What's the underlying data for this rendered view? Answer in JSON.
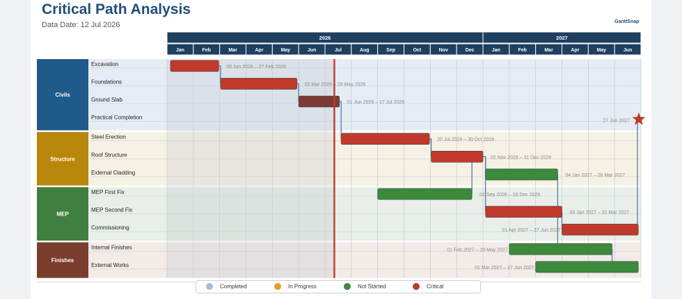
{
  "header": {
    "title": "Critical Path Analysis",
    "data_date_text": "Data Date: 12 Jul 2026",
    "brand": "GanttSnap"
  },
  "legend": [
    {
      "label": "Completed",
      "color": "#a7bcd6"
    },
    {
      "label": "In Progress",
      "color": "#e0a030"
    },
    {
      "label": "Not Started",
      "color": "#3c8a3c"
    },
    {
      "label": "Critical",
      "color": "#c0392b"
    }
  ],
  "colors": {
    "header_band": "#1f3f61",
    "critical": "#c0392b",
    "critical_past": "#7a3b35",
    "not_started": "#3c8a3c",
    "data_date_line": "#c0392b",
    "milestone": "#c0392b",
    "link": "#4a6fa0"
  },
  "chart_data": {
    "type": "gantt",
    "data_date": "2026-07-12",
    "timeline": {
      "start": "2026-01-01",
      "end": "2027-07-01",
      "years": [
        "2026",
        "2027"
      ],
      "months": [
        "Jan",
        "Feb",
        "Mar",
        "Apr",
        "May",
        "Jun",
        "Jul",
        "Aug",
        "Sep",
        "Oct",
        "Nov",
        "Dec",
        "Jan",
        "Feb",
        "Mar",
        "Apr",
        "May",
        "Jun"
      ]
    },
    "groups": [
      {
        "name": "Civils",
        "color": "#1f5a8a",
        "band": "#e6ecf3",
        "tasks": [
          {
            "name": "Excavation",
            "start": "2026-01-05",
            "end": "2026-02-27",
            "label": "05 Jan 2026 – 27 Feb 2026",
            "status": "critical",
            "label_side": "right"
          },
          {
            "name": "Foundations",
            "start": "2026-03-02",
            "end": "2026-05-29",
            "label": "02 Mar 2026 – 29 May 2026",
            "status": "critical",
            "label_side": "right"
          },
          {
            "name": "Ground Slab",
            "start": "2026-06-01",
            "end": "2026-07-17",
            "label": "01 Jun 2026 – 17 Jul 2026",
            "status": "critical",
            "label_side": "right"
          },
          {
            "name": "Practical Completion",
            "start": "2027-06-27",
            "end": "2027-06-27",
            "label": "27 Jun 2027",
            "status": "milestone",
            "label_side": "left"
          }
        ]
      },
      {
        "name": "Structure",
        "color": "#b8860b",
        "band": "#f6f1e5",
        "tasks": [
          {
            "name": "Steel Erection",
            "start": "2026-07-20",
            "end": "2026-10-30",
            "label": "20 Jul 2026 – 30 Oct 2026",
            "status": "critical",
            "label_side": "right"
          },
          {
            "name": "Roof Structure",
            "start": "2026-11-02",
            "end": "2026-12-31",
            "label": "02 Nov 2026 – 31 Dec 2026",
            "status": "critical",
            "label_side": "right"
          },
          {
            "name": "External Cladding",
            "start": "2027-01-04",
            "end": "2027-03-26",
            "label": "04 Jan 2027 – 26 Mar 2027",
            "status": "not_started",
            "label_side": "right"
          }
        ]
      },
      {
        "name": "MEP",
        "color": "#3f7f3f",
        "band": "#e9efe8",
        "tasks": [
          {
            "name": "MEP First Fix",
            "start": "2026-09-01",
            "end": "2026-12-18",
            "label": "01 Sep 2026 – 18 Dec 2026",
            "status": "not_started",
            "label_side": "right"
          },
          {
            "name": "MEP Second Fix",
            "start": "2027-01-04",
            "end": "2027-03-31",
            "label": "04 Jan 2027 – 31 Mar 2027",
            "status": "critical",
            "label_side": "right"
          },
          {
            "name": "Commissioning",
            "start": "2027-04-01",
            "end": "2027-06-27",
            "label": "01 Apr 2027 – 27 Jun 2027",
            "status": "critical",
            "label_side": "left"
          }
        ]
      },
      {
        "name": "Finishes",
        "color": "#7a3e2c",
        "band": "#f2ebe8",
        "tasks": [
          {
            "name": "Internal Finishes",
            "start": "2027-02-01",
            "end": "2027-05-28",
            "label": "01 Feb 2027 – 28 May 2027",
            "status": "not_started",
            "label_side": "left"
          },
          {
            "name": "External Works",
            "start": "2027-03-01",
            "end": "2027-06-27",
            "label": "01 Mar 2027 – 27 Jun 2027",
            "status": "not_started",
            "label_side": "left"
          }
        ]
      }
    ],
    "links": [
      [
        "Excavation",
        "Foundations"
      ],
      [
        "Foundations",
        "Ground Slab"
      ],
      [
        "Ground Slab",
        "Steel Erection"
      ],
      [
        "Steel Erection",
        "Roof Structure"
      ],
      [
        "Roof Structure",
        "External Cladding"
      ],
      [
        "MEP First Fix",
        "Roof Structure"
      ],
      [
        "Roof Structure",
        "MEP Second Fix"
      ],
      [
        "MEP Second Fix",
        "Commissioning"
      ],
      [
        "External Cladding",
        "Internal Finishes"
      ],
      [
        "Internal Finishes",
        "External Works"
      ],
      [
        "Commissioning",
        "Practical Completion"
      ]
    ]
  }
}
